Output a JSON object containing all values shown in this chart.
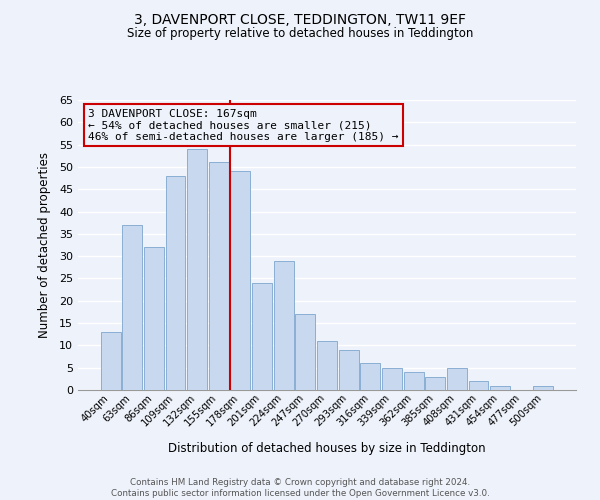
{
  "title1": "3, DAVENPORT CLOSE, TEDDINGTON, TW11 9EF",
  "title2": "Size of property relative to detached houses in Teddington",
  "xlabel": "Distribution of detached houses by size in Teddington",
  "ylabel": "Number of detached properties",
  "bar_labels": [
    "40sqm",
    "63sqm",
    "86sqm",
    "109sqm",
    "132sqm",
    "155sqm",
    "178sqm",
    "201sqm",
    "224sqm",
    "247sqm",
    "270sqm",
    "293sqm",
    "316sqm",
    "339sqm",
    "362sqm",
    "385sqm",
    "408sqm",
    "431sqm",
    "454sqm",
    "477sqm",
    "500sqm"
  ],
  "bar_values": [
    13,
    37,
    32,
    48,
    54,
    51,
    49,
    24,
    29,
    17,
    11,
    9,
    6,
    5,
    4,
    3,
    5,
    2,
    1,
    0,
    1
  ],
  "bar_color": "#c8d8ef",
  "bar_edgecolor": "#8aaed4",
  "vline_x": 6.0,
  "vline_color": "#cc0000",
  "annotation_text": "3 DAVENPORT CLOSE: 167sqm\n← 54% of detached houses are smaller (215)\n46% of semi-detached houses are larger (185) →",
  "box_edgecolor": "#cc0000",
  "ylim": [
    0,
    65
  ],
  "yticks": [
    0,
    5,
    10,
    15,
    20,
    25,
    30,
    35,
    40,
    45,
    50,
    55,
    60,
    65
  ],
  "footnote": "Contains HM Land Registry data © Crown copyright and database right 2024.\nContains public sector information licensed under the Open Government Licence v3.0.",
  "bg_color": "#eef2fa"
}
